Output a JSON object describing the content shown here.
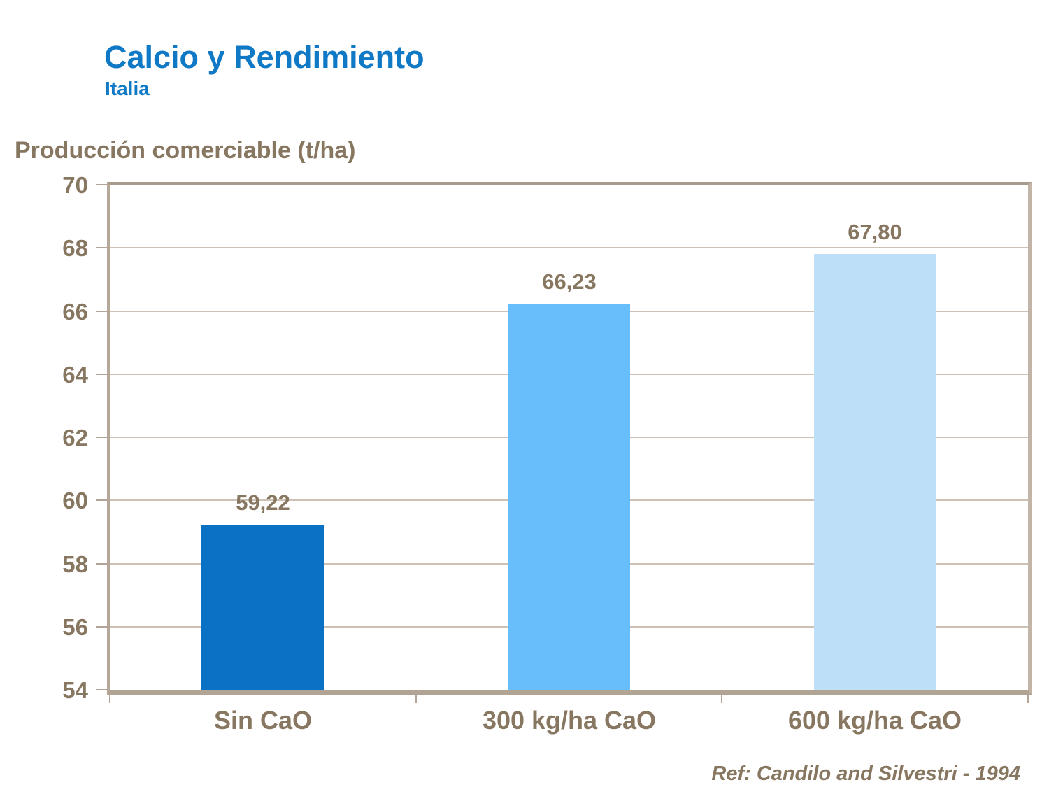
{
  "header": {
    "title": "Calcio y Rendimiento",
    "subtitle": "Italia"
  },
  "chart_data": {
    "type": "bar",
    "title": "Calcio y Rendimiento",
    "subtitle": "Italia",
    "ylabel": "Producción comerciable (t/ha)",
    "xlabel": "",
    "categories": [
      "Sin CaO",
      "300 kg/ha CaO",
      "600 kg/ha CaO"
    ],
    "values": [
      59.22,
      66.23,
      67.8
    ],
    "value_labels": [
      "59,22",
      "66,23",
      "67,80"
    ],
    "bar_colors": [
      "#0972c4",
      "#67befa",
      "#bddff8"
    ],
    "ylim": [
      54,
      70
    ],
    "yticks": [
      54,
      56,
      58,
      60,
      62,
      64,
      66,
      68,
      70
    ],
    "ytick_labels": [
      "54",
      "56",
      "58",
      "60",
      "62",
      "64",
      "66",
      "68",
      "70"
    ],
    "grid": true,
    "legend_position": "none"
  },
  "footer": {
    "reference": "Ref: Candilo and Silvestri - 1994"
  },
  "colors": {
    "title_blue": "#0f79c6",
    "text_brown": "#877660",
    "gridline": "#cdc1b5",
    "frame_tan": "#b2a495",
    "background": "#ffffff"
  }
}
